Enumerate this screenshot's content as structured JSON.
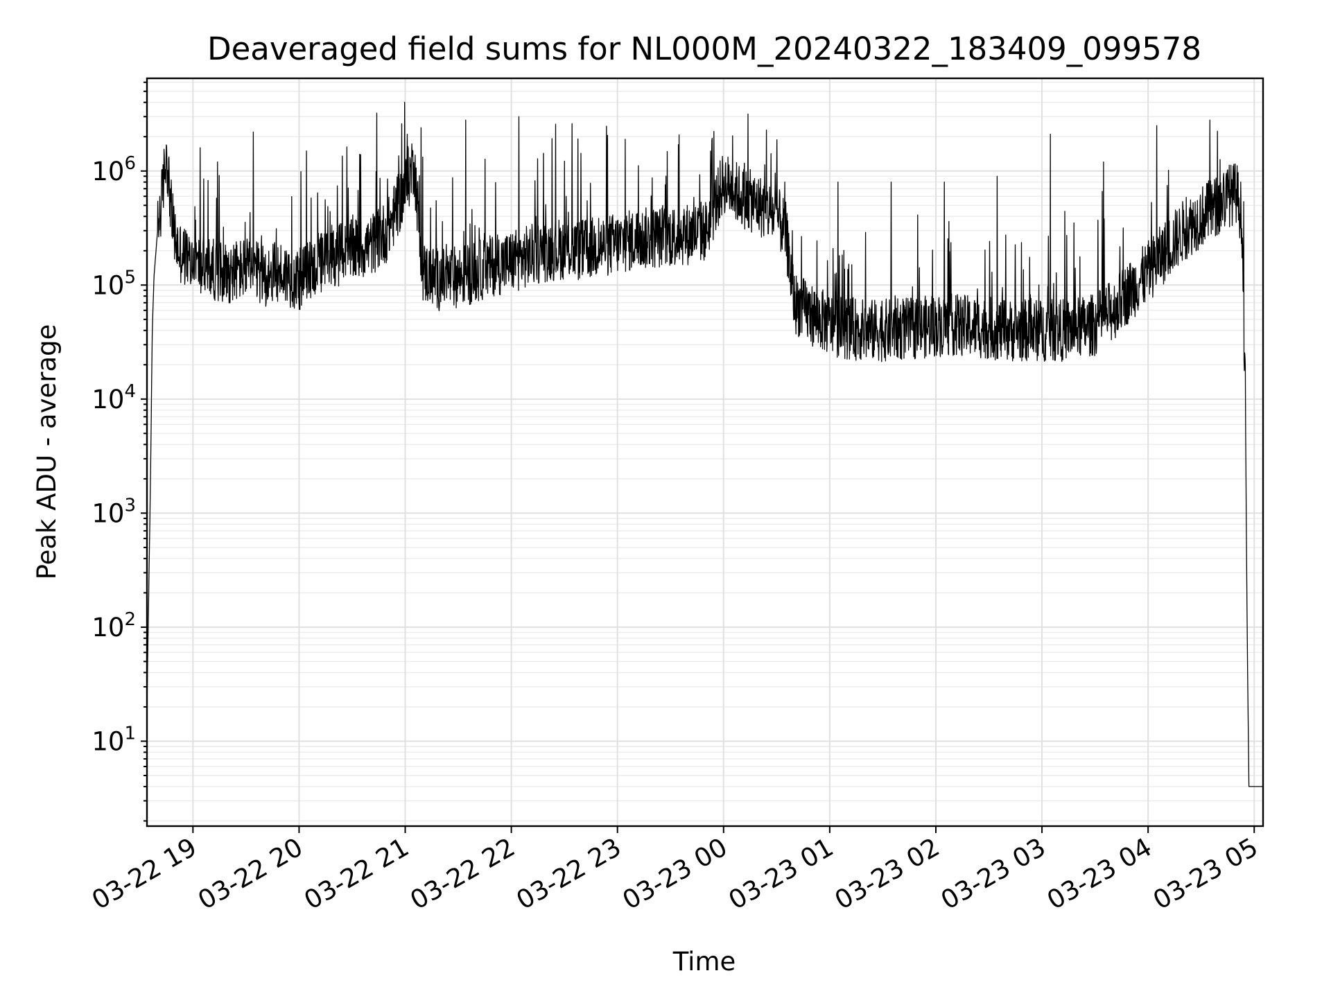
{
  "chart_data": {
    "type": "line",
    "title": "Deaveraged field sums for NL000M_20240322_183409_099578",
    "xlabel": "Time",
    "ylabel": "Peak ADU - average",
    "yscale": "log",
    "ylim": [
      1.8,
      6500000
    ],
    "xlim": [
      "2024-03-22 18:34",
      "2024-03-23 05:05"
    ],
    "grid": true,
    "line_color": "#000000",
    "x_ticks": [
      {
        "t": "2024-03-22 19:00",
        "label": "03-22 19"
      },
      {
        "t": "2024-03-22 20:00",
        "label": "03-22 20"
      },
      {
        "t": "2024-03-22 21:00",
        "label": "03-22 21"
      },
      {
        "t": "2024-03-22 22:00",
        "label": "03-22 22"
      },
      {
        "t": "2024-03-22 23:00",
        "label": "03-22 23"
      },
      {
        "t": "2024-03-23 00:00",
        "label": "03-23 00"
      },
      {
        "t": "2024-03-23 01:00",
        "label": "03-23 01"
      },
      {
        "t": "2024-03-23 02:00",
        "label": "03-23 02"
      },
      {
        "t": "2024-03-23 03:00",
        "label": "03-23 03"
      },
      {
        "t": "2024-03-23 04:00",
        "label": "03-23 04"
      },
      {
        "t": "2024-03-23 05:00",
        "label": "03-23 05"
      }
    ],
    "y_ticks": [
      {
        "value": 10,
        "base": "10",
        "exp": "1"
      },
      {
        "value": 100,
        "base": "10",
        "exp": "2"
      },
      {
        "value": 1000,
        "base": "10",
        "exp": "3"
      },
      {
        "value": 10000,
        "base": "10",
        "exp": "4"
      },
      {
        "value": 100000,
        "base": "10",
        "exp": "5"
      },
      {
        "value": 1000000,
        "base": "10",
        "exp": "6"
      }
    ],
    "series": [
      {
        "x": [
          "2024-03-22 18:34",
          "2024-03-22 18:35",
          "2024-03-22 18:36",
          "2024-03-22 18:37",
          "2024-03-22 18:38",
          "2024-03-22 18:40",
          "2024-03-22 18:42",
          "2024-03-22 18:45",
          "2024-03-22 18:48",
          "2024-03-22 18:50",
          "2024-03-22 18:52",
          "2024-03-22 18:55",
          "2024-03-22 19:00",
          "2024-03-22 19:10",
          "2024-03-22 19:20",
          "2024-03-22 19:30",
          "2024-03-22 19:40",
          "2024-03-22 19:50",
          "2024-03-22 20:00",
          "2024-03-22 20:10",
          "2024-03-22 20:20",
          "2024-03-22 20:30",
          "2024-03-22 20:40",
          "2024-03-22 20:50",
          "2024-03-22 21:00",
          "2024-03-22 21:05",
          "2024-03-22 21:10",
          "2024-03-22 21:20",
          "2024-03-22 21:30",
          "2024-03-22 21:40",
          "2024-03-22 21:50",
          "2024-03-22 22:00",
          "2024-03-22 22:10",
          "2024-03-22 22:20",
          "2024-03-22 22:30",
          "2024-03-22 22:40",
          "2024-03-22 22:50",
          "2024-03-22 23:00",
          "2024-03-22 23:10",
          "2024-03-22 23:20",
          "2024-03-22 23:30",
          "2024-03-22 23:40",
          "2024-03-22 23:50",
          "2024-03-23 00:00",
          "2024-03-23 00:10",
          "2024-03-23 00:20",
          "2024-03-23 00:30",
          "2024-03-23 00:35",
          "2024-03-23 00:40",
          "2024-03-23 00:50",
          "2024-03-23 01:00",
          "2024-03-23 01:10",
          "2024-03-23 01:20",
          "2024-03-23 01:30",
          "2024-03-23 01:40",
          "2024-03-23 01:50",
          "2024-03-23 02:00",
          "2024-03-23 02:10",
          "2024-03-23 02:20",
          "2024-03-23 02:30",
          "2024-03-23 02:40",
          "2024-03-23 02:50",
          "2024-03-23 03:00",
          "2024-03-23 03:10",
          "2024-03-23 03:20",
          "2024-03-23 03:30",
          "2024-03-23 03:40",
          "2024-03-23 03:50",
          "2024-03-23 04:00",
          "2024-03-23 04:10",
          "2024-03-23 04:20",
          "2024-03-23 04:30",
          "2024-03-23 04:40",
          "2024-03-23 04:45",
          "2024-03-23 04:50",
          "2024-03-23 04:53",
          "2024-03-23 04:55",
          "2024-03-23 04:56",
          "2024-03-23 04:57",
          "2024-03-23 04:58",
          "2024-03-23 05:00",
          "2024-03-23 05:05"
        ],
        "y": [
          20,
          200,
          2000,
          40000,
          120000,
          300000,
          500000,
          1500000,
          400000,
          250000,
          200000,
          180000,
          150000,
          140000,
          130000,
          140000,
          120000,
          130000,
          110000,
          150000,
          180000,
          200000,
          220000,
          300000,
          700000,
          1200000,
          130000,
          110000,
          120000,
          130000,
          150000,
          160000,
          180000,
          200000,
          210000,
          200000,
          220000,
          230000,
          250000,
          260000,
          270000,
          280000,
          300000,
          800000,
          600000,
          500000,
          400000,
          300000,
          70000,
          55000,
          45000,
          42000,
          40000,
          40000,
          41000,
          42000,
          44000,
          45000,
          43000,
          42000,
          40000,
          40000,
          40000,
          40000,
          42000,
          45000,
          60000,
          90000,
          130000,
          200000,
          300000,
          400000,
          500000,
          600000,
          650000,
          400000,
          10000,
          100,
          4,
          4,
          4,
          4
        ],
        "spikes": [
          1600000,
          2200000,
          1500000,
          1400000,
          1500000,
          2800000,
          3000000,
          2600000,
          1900000,
          1700000,
          900000,
          800000,
          800000,
          800000,
          800000,
          900000,
          2100000,
          1200000,
          2500000,
          2800000
        ]
      }
    ]
  }
}
